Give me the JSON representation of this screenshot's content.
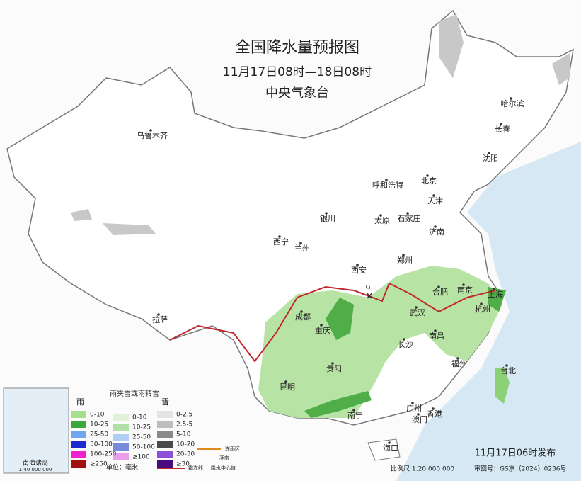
{
  "header": {
    "title": "全国降水量预报图",
    "subtitle": "11月17日08时—18日08时",
    "org": "中央气象台"
  },
  "cities": [
    "乌鲁木齐",
    "哈尔滨",
    "长春",
    "沈阳",
    "呼和浩特",
    "北京",
    "天津",
    "石家庄",
    "太原",
    "银川",
    "西宁",
    "兰州",
    "济南",
    "郑州",
    "西安",
    "合肥",
    "南京",
    "上海",
    "武汉",
    "杭州",
    "成都",
    "重庆",
    "拉萨",
    "长沙",
    "南昌",
    "贵阳",
    "昆明",
    "福州",
    "台北",
    "南宁",
    "广州",
    "澳门",
    "香港",
    "海口"
  ],
  "center_value": 9,
  "legend": {
    "rain": {
      "title": "雨",
      "items": [
        "0-10",
        "10-25",
        "25-50",
        "50-100",
        "100-250",
        "≥250"
      ]
    },
    "mix": {
      "title": "雨夹雪或雨转雪",
      "items": [
        "0-10",
        "10-25",
        "25-50",
        "50-100",
        "≥100"
      ]
    },
    "snow": {
      "title": "雪",
      "items": [
        "0-2.5",
        "2.5-5",
        "5-10",
        "10-20",
        "20-30",
        "≥30"
      ]
    },
    "unit": "单位：毫米",
    "freezing_rain_area": "冻雨区",
    "freezing_rain": "冻雨",
    "frost_line": "霜冻线",
    "center": "降水中心值"
  },
  "inset": {
    "title": "南海诸岛",
    "scale": "1:40 000 000"
  },
  "footer": {
    "issued": "11月17日06时发布",
    "scale": "比例尺 1:20 000 000",
    "review": "审图号：GS京（2024）0236号"
  }
}
